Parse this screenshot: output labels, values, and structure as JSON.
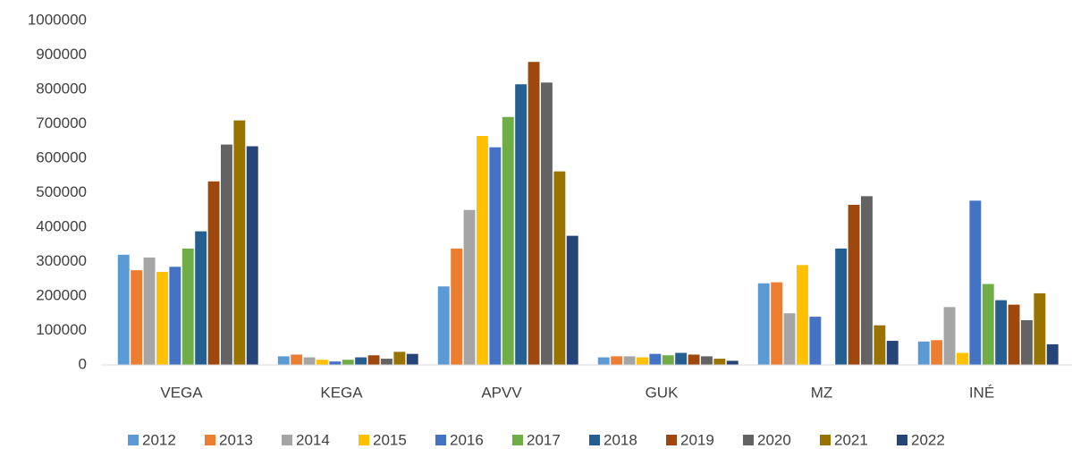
{
  "chart_data": {
    "type": "bar",
    "categories": [
      "VEGA",
      "KEGA",
      "APVV",
      "GUK",
      "MZ",
      "INÉ"
    ],
    "series": [
      {
        "name": "2012",
        "color": "#5b9bd5",
        "values": [
          320000,
          25000,
          228000,
          22000,
          237000,
          68000
        ]
      },
      {
        "name": "2013",
        "color": "#ed7d31",
        "values": [
          275000,
          30000,
          338000,
          25000,
          240000,
          72000
        ]
      },
      {
        "name": "2014",
        "color": "#a5a5a5",
        "values": [
          312000,
          22000,
          450000,
          25000,
          150000,
          168000
        ]
      },
      {
        "name": "2015",
        "color": "#ffc000",
        "values": [
          270000,
          15000,
          665000,
          22000,
          290000,
          35000
        ]
      },
      {
        "name": "2016",
        "color": "#4472c4",
        "values": [
          285000,
          10000,
          632000,
          32000,
          140000,
          477000
        ]
      },
      {
        "name": "2017",
        "color": "#70ad47",
        "values": [
          338000,
          15000,
          720000,
          28000,
          0,
          235000
        ]
      },
      {
        "name": "2018",
        "color": "#255e91",
        "values": [
          388000,
          22000,
          815000,
          35000,
          338000,
          188000
        ]
      },
      {
        "name": "2019",
        "color": "#9e480e",
        "values": [
          533000,
          28000,
          880000,
          30000,
          465000,
          175000
        ]
      },
      {
        "name": "2020",
        "color": "#636363",
        "values": [
          640000,
          18000,
          820000,
          25000,
          490000,
          130000
        ]
      },
      {
        "name": "2021",
        "color": "#997300",
        "values": [
          710000,
          38000,
          562000,
          18000,
          115000,
          208000
        ]
      },
      {
        "name": "2022",
        "color": "#264478",
        "values": [
          635000,
          32000,
          375000,
          12000,
          70000,
          60000
        ]
      }
    ],
    "ylim": [
      0,
      1000000
    ],
    "yticks": [
      0,
      100000,
      200000,
      300000,
      400000,
      500000,
      600000,
      700000,
      800000,
      900000,
      1000000
    ],
    "grid": false,
    "legend": "bottom"
  }
}
